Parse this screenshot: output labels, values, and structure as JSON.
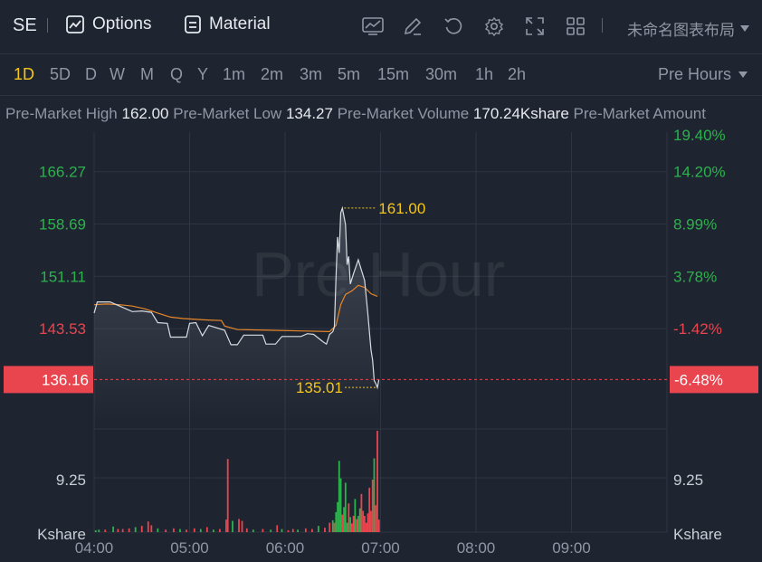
{
  "toolbar": {
    "symbol": "SE",
    "options_label": "Options",
    "material_label": "Material",
    "layout_label": "未命名图表布局",
    "icons": [
      "options-icon",
      "material-icon",
      "chart-style-icon",
      "draw-icon",
      "reset-icon",
      "settings-icon",
      "fullscreen-icon",
      "layout-grid-icon"
    ]
  },
  "periods": [
    "1D",
    "5D",
    "D",
    "W",
    "M",
    "Q",
    "Y",
    "1m",
    "2m",
    "3m",
    "5m",
    "15m",
    "30m",
    "1h",
    "2h"
  ],
  "active_period": "1D",
  "session_label": "Pre Hours",
  "stats": {
    "high_label": "Pre-Market High",
    "high_value": "162.00",
    "low_label": "Pre-Market Low",
    "low_value": "134.27",
    "volume_label": "Pre-Market Volume",
    "volume_value": "170.24Kshare",
    "amount_label": "Pre-Market Amount"
  },
  "colors": {
    "background": "#1f2530",
    "price_line": "#d9dde3",
    "avg_line": "#e8872a",
    "up": "#2bb24c",
    "down": "#e8454e",
    "current_tag": "#e8454e",
    "annotation": "#f5c518"
  },
  "chart_data": {
    "type": "line",
    "watermark": "Pre Hour",
    "x_ticks": [
      "04:00",
      "05:00",
      "06:00",
      "07:00",
      "08:00",
      "09:00"
    ],
    "price_axis": {
      "ticks": [
        {
          "price": "166.27",
          "pct": "14.20%"
        },
        {
          "price": "158.69",
          "pct": "8.99%"
        },
        {
          "price": "151.11",
          "pct": "3.78%"
        },
        {
          "price": "143.53",
          "pct": "-1.42%"
        }
      ],
      "top_pct": "19.40%",
      "ylim": [
        129.0,
        172.0
      ]
    },
    "current": {
      "price": "136.16",
      "pct": "-6.48%",
      "value": 136.16
    },
    "annotations": [
      {
        "label": "161.00",
        "time": "06:36",
        "value": 161.0
      },
      {
        "label": "135.01",
        "time": "06:58",
        "value": 135.01
      }
    ],
    "volume_axis": {
      "tick": "9.25",
      "unit": "Kshare"
    },
    "price_series": {
      "name": "",
      "points": [
        [
          "04:00",
          145.8
        ],
        [
          "04:02",
          147.4
        ],
        [
          "04:10",
          147.4
        ],
        [
          "04:18",
          146.6
        ],
        [
          "04:24",
          146.0
        ],
        [
          "04:30",
          146.1
        ],
        [
          "04:36",
          145.9
        ],
        [
          "04:40",
          144.4
        ],
        [
          "04:46",
          144.3
        ],
        [
          "04:48",
          142.3
        ],
        [
          "04:58",
          142.3
        ],
        [
          "05:00",
          144.3
        ],
        [
          "05:04",
          144.4
        ],
        [
          "05:08",
          142.5
        ],
        [
          "05:12",
          144.0
        ],
        [
          "05:22",
          143.3
        ],
        [
          "05:26",
          141.2
        ],
        [
          "05:30",
          141.2
        ],
        [
          "05:34",
          142.6
        ],
        [
          "05:46",
          142.6
        ],
        [
          "05:48",
          141.3
        ],
        [
          "05:54",
          141.3
        ],
        [
          "05:58",
          142.4
        ],
        [
          "06:10",
          142.4
        ],
        [
          "06:14",
          142.8
        ],
        [
          "06:18",
          142.7
        ],
        [
          "06:24",
          141.6
        ],
        [
          "06:26",
          141.3
        ],
        [
          "06:28",
          142.7
        ],
        [
          "06:30",
          143.1
        ],
        [
          "06:31",
          143.8
        ],
        [
          "06:32",
          151.0
        ],
        [
          "06:33",
          156.8
        ],
        [
          "06:34",
          154.5
        ],
        [
          "06:35",
          160.3
        ],
        [
          "06:36",
          161.0
        ],
        [
          "06:37",
          159.8
        ],
        [
          "06:38",
          158.6
        ],
        [
          "06:39",
          152.8
        ],
        [
          "06:40",
          154.0
        ],
        [
          "06:41",
          150.0
        ],
        [
          "06:43",
          151.5
        ],
        [
          "06:46",
          153.5
        ],
        [
          "06:48",
          152.0
        ],
        [
          "06:50",
          150.5
        ],
        [
          "06:52",
          145.8
        ],
        [
          "06:54",
          140.5
        ],
        [
          "06:55",
          139.0
        ],
        [
          "06:56",
          136.0
        ],
        [
          "06:57",
          135.6
        ],
        [
          "06:58",
          135.01
        ],
        [
          "06:59",
          136.16
        ]
      ]
    },
    "avg_series": {
      "name": "",
      "points": [
        [
          "04:00",
          147.0
        ],
        [
          "04:08",
          147.1
        ],
        [
          "04:16",
          147.0
        ],
        [
          "04:24",
          146.8
        ],
        [
          "04:32",
          146.4
        ],
        [
          "04:40",
          145.8
        ],
        [
          "04:48",
          145.2
        ],
        [
          "04:56",
          145.0
        ],
        [
          "05:10",
          144.8
        ],
        [
          "05:20",
          144.7
        ],
        [
          "05:22",
          143.9
        ],
        [
          "05:30",
          143.4
        ],
        [
          "05:50",
          143.3
        ],
        [
          "06:10",
          143.2
        ],
        [
          "06:28",
          143.1
        ],
        [
          "06:32",
          144.0
        ],
        [
          "06:35",
          147.0
        ],
        [
          "06:38",
          148.5
        ],
        [
          "06:42",
          149.0
        ],
        [
          "06:46",
          149.8
        ],
        [
          "06:50",
          149.5
        ],
        [
          "06:54",
          148.6
        ],
        [
          "06:58",
          148.2
        ]
      ]
    },
    "volume_series": {
      "name": "",
      "ylim": [
        0,
        16.5
      ],
      "bars": [
        [
          "04:01",
          0.3,
          "up"
        ],
        [
          "04:03",
          0.4,
          "up"
        ],
        [
          "04:07",
          0.4,
          "down"
        ],
        [
          "04:12",
          0.9,
          "up"
        ],
        [
          "04:15",
          0.5,
          "down"
        ],
        [
          "04:18",
          0.5,
          "down"
        ],
        [
          "04:22",
          0.6,
          "down"
        ],
        [
          "04:26",
          0.8,
          "up"
        ],
        [
          "04:30",
          1.0,
          "down"
        ],
        [
          "04:34",
          1.7,
          "down"
        ],
        [
          "04:36",
          1.1,
          "down"
        ],
        [
          "04:40",
          0.6,
          "up"
        ],
        [
          "04:45",
          0.4,
          "down"
        ],
        [
          "04:50",
          0.6,
          "down"
        ],
        [
          "04:54",
          0.5,
          "up"
        ],
        [
          "04:58",
          0.4,
          "down"
        ],
        [
          "05:03",
          0.6,
          "down"
        ],
        [
          "05:07",
          0.5,
          "up"
        ],
        [
          "05:11",
          0.8,
          "down"
        ],
        [
          "05:15",
          0.4,
          "up"
        ],
        [
          "05:19",
          0.5,
          "down"
        ],
        [
          "05:23",
          2.0,
          "down"
        ],
        [
          "05:24",
          11.7,
          "down"
        ],
        [
          "05:27",
          1.8,
          "up"
        ],
        [
          "05:31",
          2.1,
          "down"
        ],
        [
          "05:33",
          1.8,
          "down"
        ],
        [
          "05:36",
          0.6,
          "down"
        ],
        [
          "05:40",
          0.4,
          "up"
        ],
        [
          "05:46",
          0.5,
          "down"
        ],
        [
          "05:51",
          0.4,
          "up"
        ],
        [
          "05:55",
          1.1,
          "down"
        ],
        [
          "05:58",
          0.5,
          "up"
        ],
        [
          "06:02",
          0.3,
          "down"
        ],
        [
          "06:05",
          0.5,
          "down"
        ],
        [
          "06:08",
          0.4,
          "up"
        ],
        [
          "06:13",
          0.6,
          "down"
        ],
        [
          "06:17",
          0.5,
          "down"
        ],
        [
          "06:21",
          1.0,
          "up"
        ],
        [
          "06:25",
          0.7,
          "down"
        ],
        [
          "06:28",
          1.5,
          "down"
        ],
        [
          "06:30",
          1.9,
          "up"
        ],
        [
          "06:31",
          1.5,
          "down"
        ],
        [
          "06:32",
          3.2,
          "up"
        ],
        [
          "06:33",
          4.8,
          "up"
        ],
        [
          "06:34",
          11.4,
          "up"
        ],
        [
          "06:35",
          8.6,
          "up"
        ],
        [
          "06:36",
          2.8,
          "down"
        ],
        [
          "06:37",
          4.0,
          "up"
        ],
        [
          "06:38",
          7.9,
          "up"
        ],
        [
          "06:39",
          1.5,
          "up"
        ],
        [
          "06:40",
          4.6,
          "down"
        ],
        [
          "06:41",
          2.4,
          "up"
        ],
        [
          "06:42",
          1.4,
          "down"
        ],
        [
          "06:43",
          2.6,
          "down"
        ],
        [
          "06:44",
          5.3,
          "up"
        ],
        [
          "06:45",
          2.1,
          "down"
        ],
        [
          "06:46",
          2.6,
          "up"
        ],
        [
          "06:47",
          3.8,
          "up"
        ],
        [
          "06:48",
          6.1,
          "down"
        ],
        [
          "06:49",
          3.4,
          "down"
        ],
        [
          "06:50",
          2.6,
          "down"
        ],
        [
          "06:51",
          1.5,
          "down"
        ],
        [
          "06:52",
          3.0,
          "down"
        ],
        [
          "06:53",
          7.1,
          "down"
        ],
        [
          "06:54",
          3.4,
          "down"
        ],
        [
          "06:55",
          8.4,
          "down"
        ],
        [
          "06:56",
          11.8,
          "up"
        ],
        [
          "06:57",
          4.3,
          "down"
        ],
        [
          "06:58",
          16.2,
          "down"
        ],
        [
          "06:59",
          2.0,
          "down"
        ]
      ]
    }
  }
}
